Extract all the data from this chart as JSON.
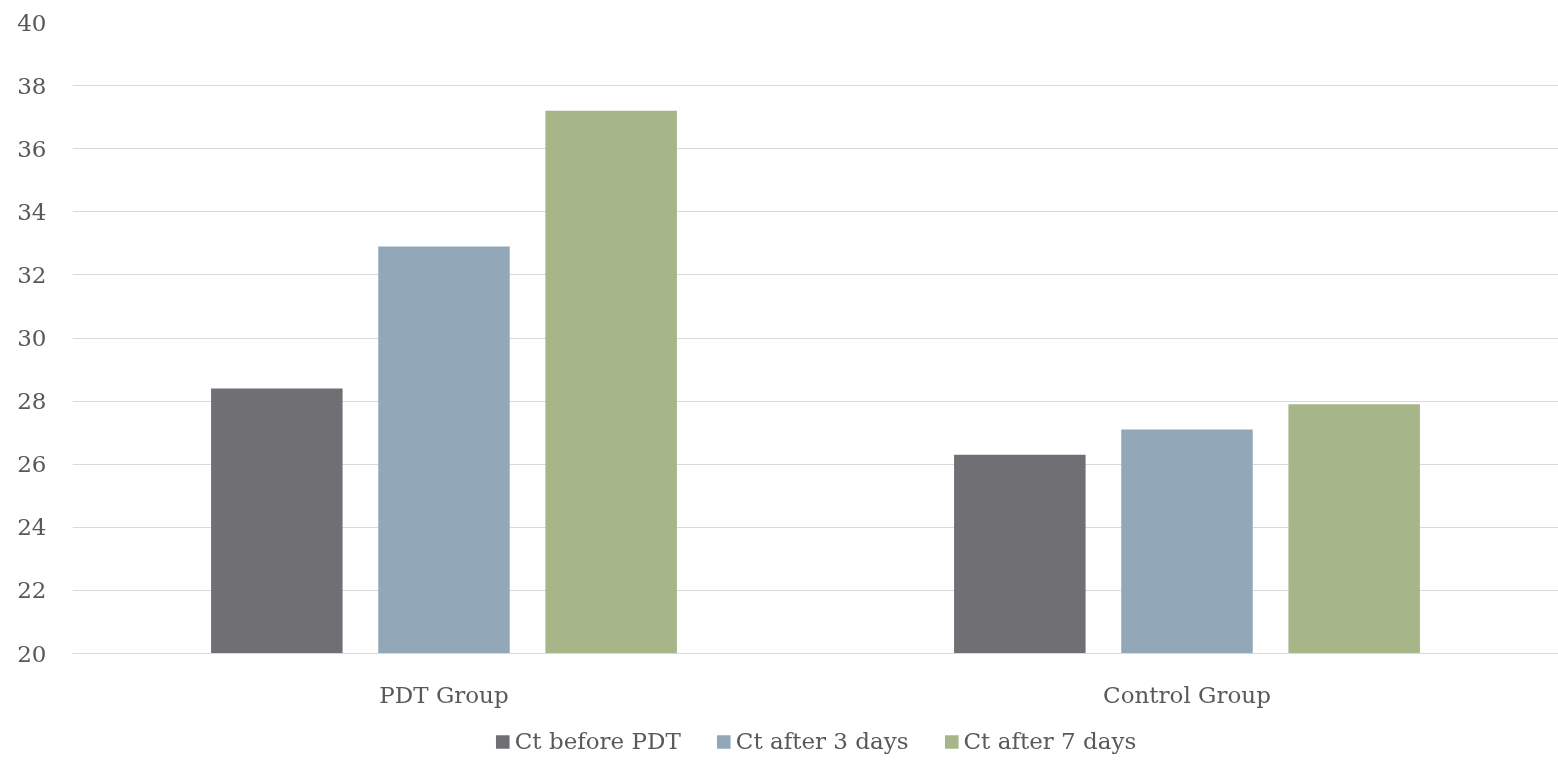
{
  "chart_data": {
    "type": "bar",
    "categories": [
      "PDT Group",
      "Control Group"
    ],
    "series": [
      {
        "name": "Ct before PDT",
        "color": "#706f74",
        "values": [
          28.4,
          26.3
        ]
      },
      {
        "name": "Ct after 3 days",
        "color": "#92a8b8",
        "values": [
          32.9,
          27.1
        ]
      },
      {
        "name": "Ct after 7 days",
        "color": "#a6b688",
        "values": [
          37.2,
          27.9
        ]
      }
    ],
    "ylim": [
      20,
      40
    ],
    "yticks": [
      20,
      22,
      24,
      26,
      28,
      30,
      32,
      34,
      36,
      38,
      40
    ],
    "grid": "y",
    "legend": "bottom"
  }
}
